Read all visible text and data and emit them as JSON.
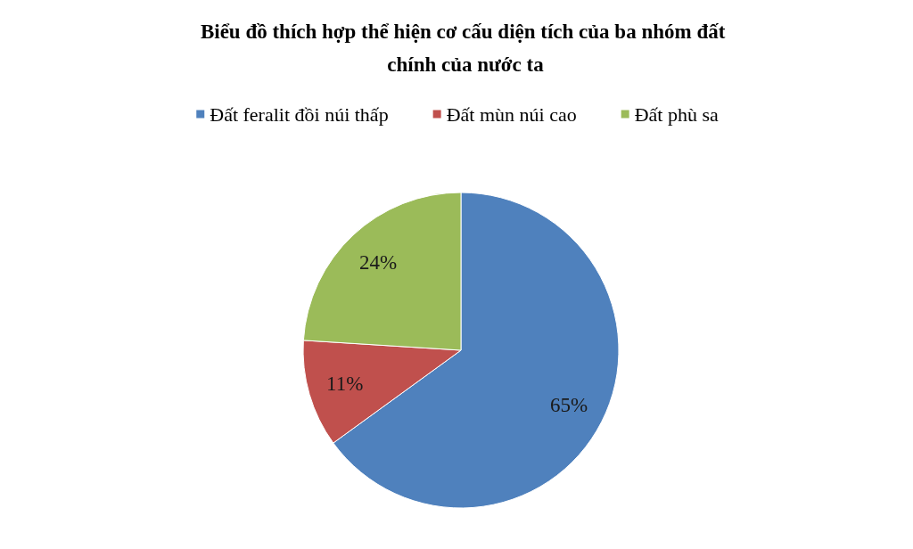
{
  "chart_data": {
    "type": "pie",
    "title": "Biểu đồ thích hợp thể hiện cơ cấu diện tích của ba nhóm đất chính của nước ta",
    "categories": [
      "Đất feralit đồi núi thấp",
      "Đất mùn núi cao",
      "Đất phù sa"
    ],
    "values": [
      65,
      11,
      24
    ],
    "colors": [
      "#4f81bd",
      "#c0504d",
      "#9bbb59"
    ],
    "value_labels": [
      "65%",
      "11%",
      "24%"
    ],
    "legend": "top"
  }
}
